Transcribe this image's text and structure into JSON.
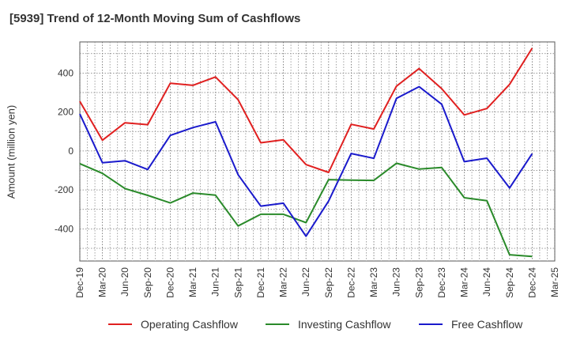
{
  "chart_data": {
    "type": "line",
    "title": "[5939]  Trend of 12-Month Moving Sum of Cashflows",
    "xlabel": "",
    "ylabel": "Amount (million yen)",
    "categories": [
      "Dec-19",
      "Mar-20",
      "Jun-20",
      "Sep-20",
      "Dec-20",
      "Mar-21",
      "Jun-21",
      "Sep-21",
      "Dec-21",
      "Mar-22",
      "Jun-22",
      "Sep-22",
      "Dec-22",
      "Mar-23",
      "Jun-23",
      "Sep-23",
      "Dec-23",
      "Mar-24",
      "Jun-24",
      "Sep-24",
      "Dec-24",
      "Mar-25"
    ],
    "ylim": [
      -565,
      560
    ],
    "yticks": [
      -400,
      -200,
      0,
      200,
      400
    ],
    "grid": true,
    "legend_position": "bottom",
    "series": [
      {
        "name": "Operating Cashflow",
        "color": "#e02020",
        "values": [
          255,
          55,
          145,
          135,
          348,
          337,
          380,
          263,
          42,
          57,
          -70,
          -110,
          137,
          113,
          333,
          423,
          320,
          185,
          218,
          342,
          528,
          null
        ]
      },
      {
        "name": "Investing Cashflow",
        "color": "#2a8a2a",
        "values": [
          -65,
          -115,
          -193,
          -228,
          -267,
          -216,
          -227,
          -385,
          -325,
          -325,
          -368,
          -147,
          -150,
          -151,
          -63,
          -93,
          -85,
          -240,
          -255,
          -533,
          -542,
          null
        ]
      },
      {
        "name": "Free Cashflow",
        "color": "#1a1acc",
        "values": [
          190,
          -60,
          -50,
          -95,
          80,
          120,
          150,
          -122,
          -283,
          -268,
          -438,
          -257,
          -13,
          -38,
          270,
          330,
          240,
          -55,
          -37,
          -190,
          -14,
          null
        ]
      }
    ]
  }
}
